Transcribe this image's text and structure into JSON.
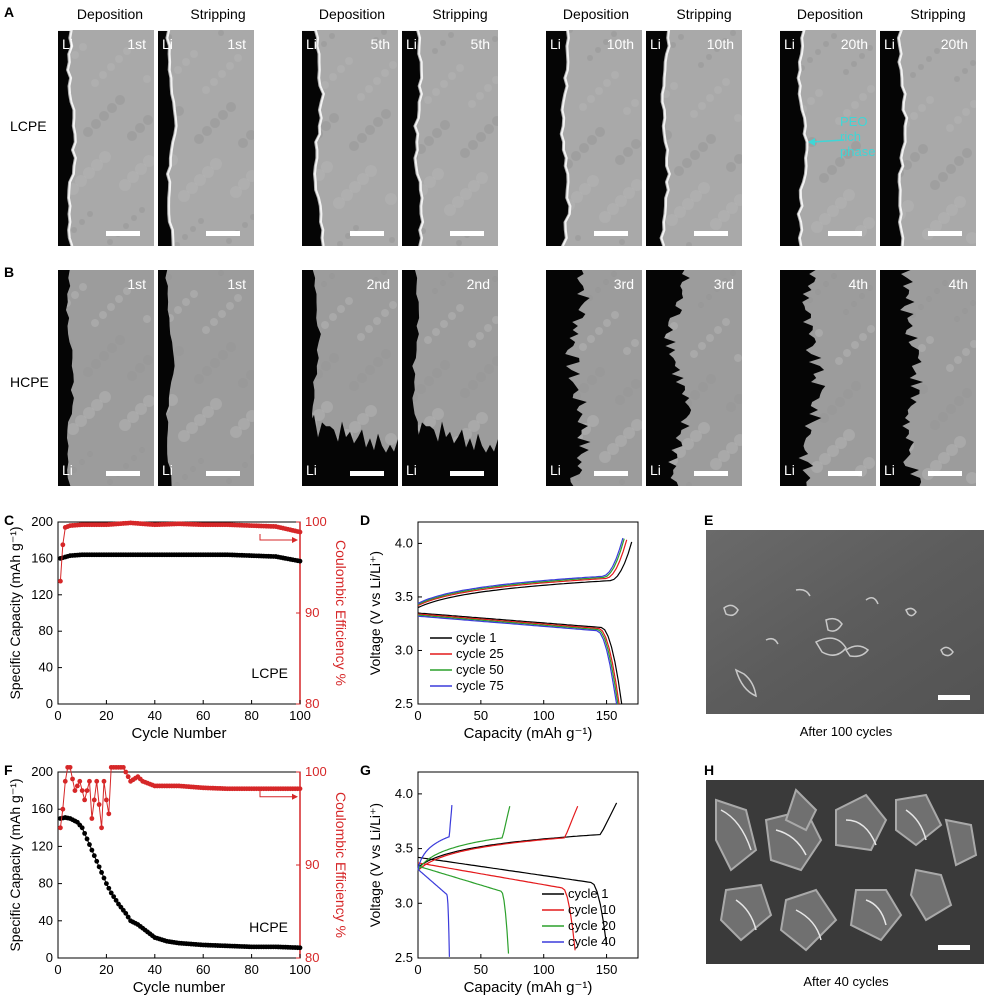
{
  "panels": {
    "A": "A",
    "B": "B",
    "C": "C",
    "D": "D",
    "E": "E",
    "F": "F",
    "G": "G",
    "H": "H"
  },
  "row_labels": {
    "a": "LCPE",
    "b": "HCPE"
  },
  "column_headers": [
    "Deposition",
    "Stripping",
    "Deposition",
    "Stripping",
    "Deposition",
    "Stripping",
    "Deposition",
    "Stripping"
  ],
  "li_label": "Li",
  "row_a_cycles": [
    "1st",
    "1st",
    "5th",
    "5th",
    "10th",
    "10th",
    "20th",
    "20th"
  ],
  "row_b_cycles": [
    "1st",
    "1st",
    "2nd",
    "2nd",
    "3rd",
    "3rd",
    "4th",
    "4th"
  ],
  "annotation": {
    "line1": "PEO",
    "line2": "rich",
    "line3": "phase",
    "color": "#3fd6d6"
  },
  "sem_captions": {
    "e": "After 100 cycles",
    "h": "After 40 cycles"
  },
  "chart_data": [
    {
      "id": "C",
      "type": "scatter",
      "xlabel": "Cycle Number",
      "ylabel": "Specific Capacity (mAh g⁻¹)",
      "y2label": "Coulombic Efficiency %",
      "inset_label": "LCPE",
      "xlim": [
        0,
        100
      ],
      "ylim": [
        0,
        200
      ],
      "y2lim": [
        80,
        100
      ],
      "xticks": [
        "0",
        "20",
        "40",
        "60",
        "80",
        "100"
      ],
      "yticks": [
        "0",
        "40",
        "80",
        "120",
        "160",
        "200"
      ],
      "y2ticks": [
        "80",
        "90",
        "100"
      ],
      "series": [
        {
          "axis": "left",
          "color": "#000000",
          "x": [
            1,
            5,
            10,
            15,
            20,
            30,
            40,
            50,
            60,
            70,
            80,
            90,
            100
          ],
          "values": [
            160,
            163,
            164,
            164,
            164,
            164,
            164,
            164,
            164,
            164,
            163,
            162,
            157
          ]
        },
        {
          "axis": "right",
          "color": "#d62728",
          "x": [
            1,
            2,
            3,
            5,
            10,
            20,
            30,
            40,
            50,
            60,
            70,
            80,
            90,
            95,
            100
          ],
          "values": [
            93.5,
            97.5,
            99.4,
            99.6,
            99.7,
            99.7,
            99.9,
            99.7,
            99.8,
            99.7,
            99.7,
            99.6,
            99.5,
            99.2,
            98.9
          ]
        }
      ]
    },
    {
      "id": "D",
      "type": "line",
      "xlabel": "Capacity (mAh g⁻¹)",
      "ylabel": "Voltage (V vs Li/Li⁺)",
      "xlim": [
        0,
        175
      ],
      "ylim": [
        2.5,
        4.2
      ],
      "xticks": [
        "0",
        "50",
        "100",
        "150"
      ],
      "yticks": [
        "2.5",
        "3.0",
        "3.5",
        "4.0"
      ],
      "legend": [
        "cycle 1",
        "cycle 25",
        "cycle 50",
        "cycle 75"
      ],
      "colors": [
        "#000000",
        "#e41a1c",
        "#2ca02c",
        "#3b3bdb"
      ],
      "charge_end": [
        170,
        166,
        164,
        163
      ],
      "discharge_end": [
        162,
        160,
        159,
        158
      ],
      "charge_v0": [
        3.45,
        3.47,
        3.48,
        3.49
      ],
      "discharge_v0": [
        3.4,
        3.39,
        3.38,
        3.37
      ]
    },
    {
      "id": "F",
      "type": "scatter",
      "xlabel": "Cycle number",
      "ylabel": "Specific Capacity (mAh g⁻¹)",
      "y2label": "Coulombic Efficiency %",
      "inset_label": "HCPE",
      "xlim": [
        0,
        100
      ],
      "ylim": [
        0,
        200
      ],
      "y2lim": [
        80,
        100
      ],
      "xticks": [
        "0",
        "20",
        "40",
        "60",
        "80",
        "100"
      ],
      "yticks": [
        "0",
        "40",
        "80",
        "120",
        "160",
        "200"
      ],
      "y2ticks": [
        "80",
        "90",
        "100"
      ],
      "series": [
        {
          "axis": "left",
          "color": "#000000",
          "x": [
            1,
            3,
            5,
            8,
            10,
            12,
            15,
            18,
            20,
            22,
            25,
            28,
            30,
            33,
            35,
            40,
            45,
            50,
            60,
            70,
            80,
            90,
            100
          ],
          "values": [
            150,
            151,
            150,
            146,
            140,
            128,
            110,
            92,
            80,
            70,
            58,
            48,
            40,
            36,
            32,
            22,
            18,
            16,
            14,
            13,
            12,
            12,
            11
          ]
        },
        {
          "axis": "right",
          "color": "#d62728",
          "x": [
            1,
            2,
            3,
            4,
            5,
            7,
            9,
            11,
            13,
            14,
            16,
            18,
            19,
            20,
            21,
            22,
            23,
            25,
            27,
            30,
            33,
            35,
            40,
            50,
            60,
            70,
            80,
            90,
            100
          ],
          "values": [
            94,
            96,
            99,
            100.5,
            100.5,
            98,
            99,
            97,
            99,
            95,
            99,
            94,
            99,
            97,
            95.5,
            100.5,
            100.5,
            100.5,
            100.5,
            99,
            99.5,
            99,
            98.5,
            98.5,
            98.3,
            98.2,
            98.2,
            98.2,
            98.2
          ]
        }
      ]
    },
    {
      "id": "G",
      "type": "line",
      "xlabel": "Capacity (mAh g⁻¹)",
      "ylabel": "Voltage (V vs Li/Li⁺)",
      "xlim": [
        0,
        175
      ],
      "ylim": [
        2.5,
        4.2
      ],
      "xticks": [
        "0",
        "50",
        "100",
        "150"
      ],
      "yticks": [
        "2.5",
        "3.0",
        "3.5",
        "4.0"
      ],
      "legend": [
        "cycle 1",
        "cycle 10",
        "cycle 20",
        "cycle 40"
      ],
      "colors": [
        "#000000",
        "#e41a1c",
        "#2ca02c",
        "#3b3bdb"
      ],
      "charge_end": [
        158,
        127,
        73,
        27
      ],
      "discharge_end": [
        150,
        125,
        72,
        25
      ],
      "charge_v0": [
        3.33,
        3.3,
        3.3,
        3.31
      ],
      "discharge_v0": [
        3.47,
        3.42,
        3.39,
        3.36
      ]
    }
  ]
}
